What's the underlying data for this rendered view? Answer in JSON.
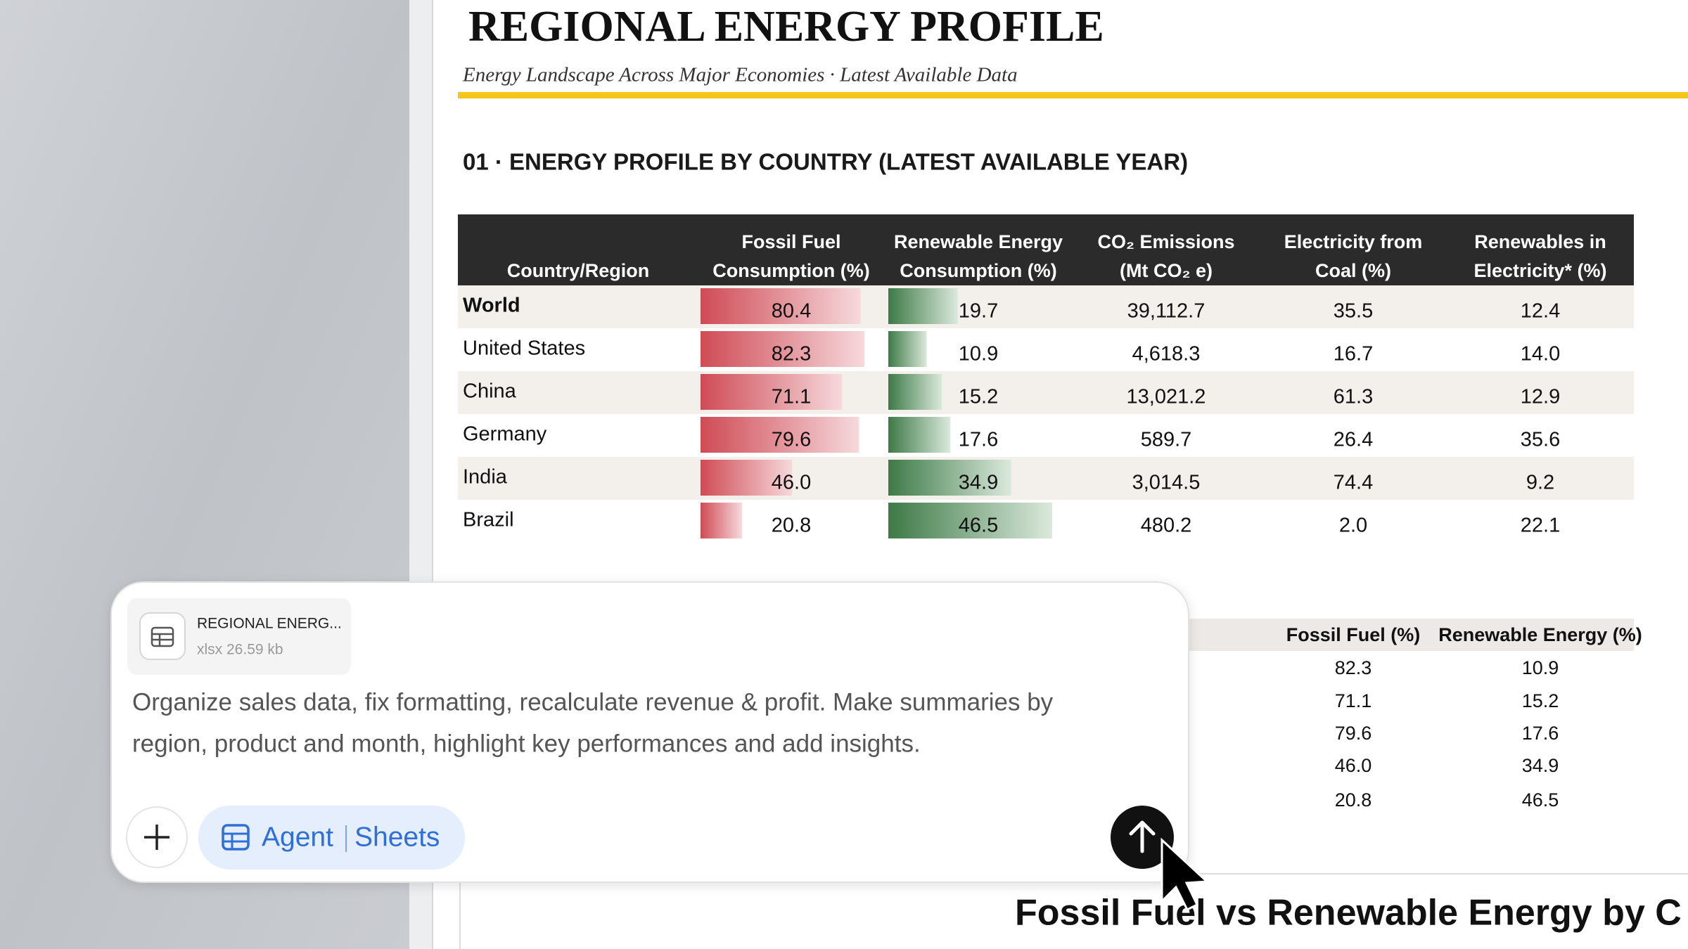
{
  "document": {
    "title": "REGIONAL ENERGY PROFILE",
    "subtitle": "Energy Landscape Across Major Economies  ·  Latest Available Data",
    "section_heading": "01  ·  ENERGY PROFILE BY COUNTRY (LATEST AVAILABLE YEAR)",
    "table": {
      "headers": [
        [
          "Country/Region"
        ],
        [
          "Fossil Fuel",
          "Consumption (%)"
        ],
        [
          "Renewable Energy",
          "Consumption (%)"
        ],
        [
          "CO₂  Emissions",
          "(Mt CO₂  e)"
        ],
        [
          "Electricity from",
          "Coal (%)"
        ],
        [
          "Renewables in",
          "Electricity* (%)"
        ]
      ],
      "rows": [
        [
          "World",
          "80.4",
          "19.7",
          "39,112.7",
          "35.5",
          "12.4"
        ],
        [
          "United States",
          "82.3",
          "10.9",
          "4,618.3",
          "16.7",
          "14.0"
        ],
        [
          "China",
          "71.1",
          "15.2",
          "13,021.2",
          "61.3",
          "12.9"
        ],
        [
          "Germany",
          "79.6",
          "17.6",
          "589.7",
          "26.4",
          "35.6"
        ],
        [
          "India",
          "46.0",
          "34.9",
          "3,014.5",
          "74.4",
          "9.2"
        ],
        [
          "Brazil",
          "20.8",
          "46.5",
          "480.2",
          "2.0",
          "22.1"
        ]
      ]
    },
    "summary_table": {
      "headers": [
        "Fossil Fuel (%)",
        "Renewable Energy (%)"
      ],
      "rows": [
        [
          "82.3",
          "10.9"
        ],
        [
          "71.1",
          "15.2"
        ],
        [
          "79.6",
          "17.6"
        ],
        [
          "46.0",
          "34.9"
        ],
        [
          "20.8",
          "46.5"
        ]
      ]
    },
    "chart_title": "Fossil Fuel vs Renewable Energy by C"
  },
  "chat": {
    "attachment": {
      "name": "REGIONAL ENERG...",
      "meta": "xlsx 26.59 kb"
    },
    "prompt": [
      "Organize sales data, fix formatting, recalculate revenue & profit. Make summaries by",
      "region, product and month, highlight key performances and add insights."
    ],
    "mode": {
      "agent": "Agent",
      "app": "Sheets"
    }
  }
}
